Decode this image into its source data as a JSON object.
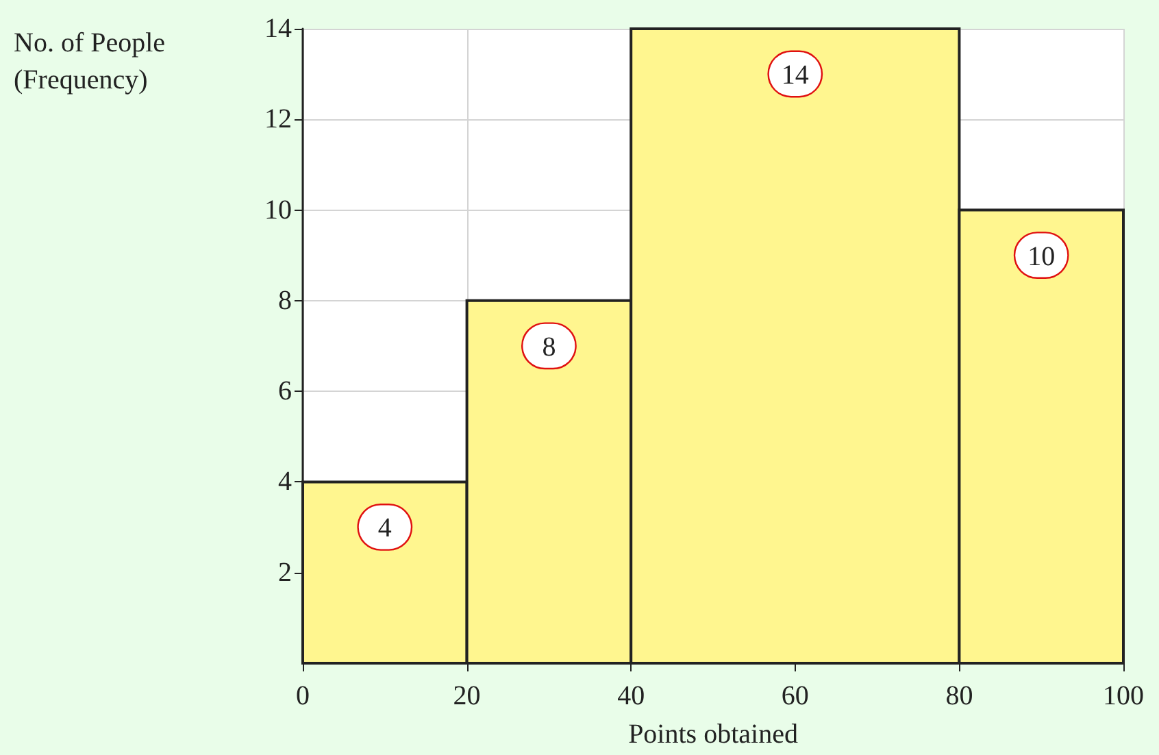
{
  "chart_data": {
    "type": "histogram",
    "xlabel": "Points obtained",
    "ylabel": "No. of People\n(Frequency)",
    "bins": [
      0,
      20,
      40,
      80,
      100
    ],
    "values": [
      4,
      8,
      14,
      10
    ],
    "color": "#fff68f",
    "xlim": [
      0,
      100
    ],
    "xticks": [
      0,
      20,
      40,
      60,
      80,
      100
    ],
    "ylim": [
      0,
      14
    ],
    "yticks": [
      2,
      4,
      6,
      8,
      10,
      12,
      14
    ],
    "grid": true,
    "data_labels": true
  }
}
